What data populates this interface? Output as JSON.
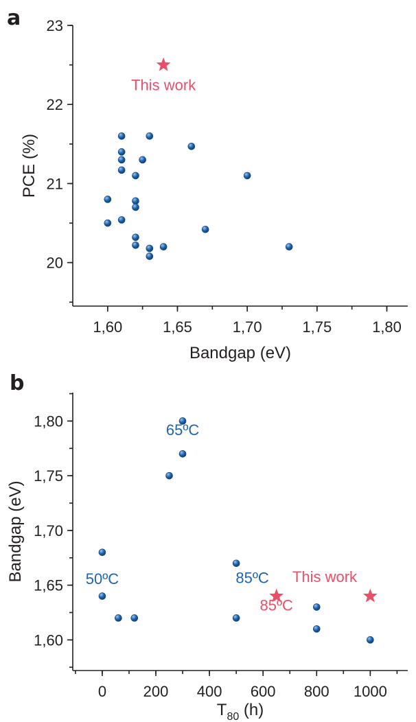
{
  "colors": {
    "point": "#1f64ad",
    "highlight": "#e8506a",
    "axis": "#231f20"
  },
  "chart_data": [
    {
      "panel_label": "a",
      "type": "scatter",
      "xlabel": "Bandgap (eV)",
      "ylabel": "PCE (%)",
      "xlim": [
        1.575,
        1.815
      ],
      "ylim": [
        19.45,
        23.0
      ],
      "x_ticks": [
        1.6,
        1.65,
        1.7,
        1.75,
        1.8
      ],
      "x_tick_labels": [
        "1,60",
        "1,65",
        "1,70",
        "1,75",
        "1,80"
      ],
      "y_ticks": [
        20,
        21,
        22,
        23
      ],
      "y_tick_labels": [
        "20",
        "21",
        "22",
        "23"
      ],
      "points": [
        {
          "x": 1.6,
          "y": 20.8
        },
        {
          "x": 1.6,
          "y": 20.5
        },
        {
          "x": 1.61,
          "y": 21.6
        },
        {
          "x": 1.61,
          "y": 21.4
        },
        {
          "x": 1.61,
          "y": 21.3
        },
        {
          "x": 1.61,
          "y": 21.17
        },
        {
          "x": 1.61,
          "y": 20.54
        },
        {
          "x": 1.62,
          "y": 21.1
        },
        {
          "x": 1.62,
          "y": 20.78
        },
        {
          "x": 1.62,
          "y": 20.7
        },
        {
          "x": 1.62,
          "y": 20.32
        },
        {
          "x": 1.62,
          "y": 20.22
        },
        {
          "x": 1.625,
          "y": 21.3
        },
        {
          "x": 1.63,
          "y": 21.6
        },
        {
          "x": 1.63,
          "y": 20.18
        },
        {
          "x": 1.63,
          "y": 20.08
        },
        {
          "x": 1.64,
          "y": 20.2
        },
        {
          "x": 1.66,
          "y": 21.47
        },
        {
          "x": 1.67,
          "y": 20.42
        },
        {
          "x": 1.7,
          "y": 21.1
        },
        {
          "x": 1.73,
          "y": 20.2
        }
      ],
      "highlight_points": [
        {
          "x": 1.64,
          "y": 22.5
        }
      ],
      "annotations": [
        {
          "text": "This work",
          "x": 1.64,
          "y": 22.18,
          "role": "highlight"
        }
      ]
    },
    {
      "panel_label": "b",
      "type": "scatter",
      "xlabel_main": "T",
      "xlabel_sub": "80",
      "xlabel_unit": " (h)",
      "ylabel": "Bandgap (eV)",
      "xlim": [
        -110,
        1140
      ],
      "ylim": [
        1.572,
        1.826
      ],
      "x_ticks": [
        0,
        200,
        400,
        600,
        800,
        1000
      ],
      "x_tick_labels": [
        "0",
        "200",
        "400",
        "600",
        "800",
        "1000"
      ],
      "y_ticks": [
        1.6,
        1.65,
        1.7,
        1.75,
        1.8
      ],
      "y_tick_labels": [
        "1,60",
        "1,65",
        "1,70",
        "1,75",
        "1,80"
      ],
      "points": [
        {
          "x": 0,
          "y": 1.68
        },
        {
          "x": 0,
          "y": 1.64
        },
        {
          "x": 60,
          "y": 1.62
        },
        {
          "x": 120,
          "y": 1.62
        },
        {
          "x": 250,
          "y": 1.75
        },
        {
          "x": 300,
          "y": 1.8
        },
        {
          "x": 300,
          "y": 1.77
        },
        {
          "x": 500,
          "y": 1.67
        },
        {
          "x": 500,
          "y": 1.62
        },
        {
          "x": 800,
          "y": 1.63
        },
        {
          "x": 800,
          "y": 1.61
        },
        {
          "x": 1000,
          "y": 1.6
        }
      ],
      "highlight_points": [
        {
          "x": 650,
          "y": 1.64
        },
        {
          "x": 1000,
          "y": 1.64
        }
      ],
      "annotations": [
        {
          "text": "65ºC",
          "x": 300,
          "y": 1.787,
          "role": "point"
        },
        {
          "text": "50ºC",
          "x": 0,
          "y": 1.651,
          "role": "point"
        },
        {
          "text": "85ºC",
          "x": 560,
          "y": 1.652,
          "role": "point"
        },
        {
          "text": "This work",
          "x": 830,
          "y": 1.653,
          "role": "highlight"
        },
        {
          "text": "85ºC",
          "x": 650,
          "y": 1.627,
          "role": "highlight"
        }
      ]
    }
  ]
}
